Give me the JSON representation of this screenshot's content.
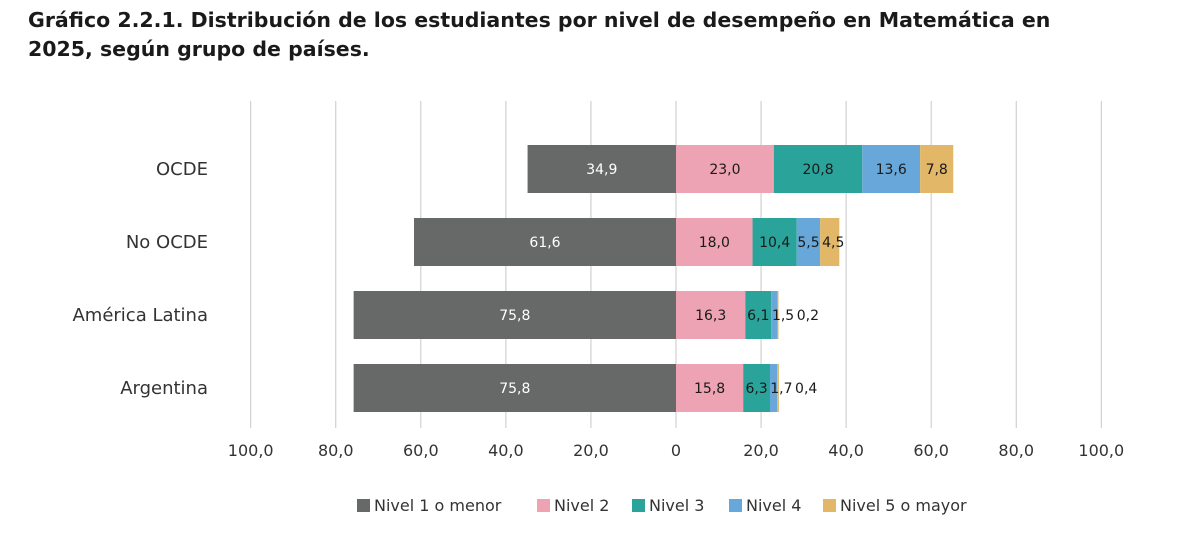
{
  "title_line1": "Gráfico 2.2.1. Distribución de los estudiantes por nivel de desempeño en Matemática en",
  "title_line2": "2025, según grupo de países.",
  "colors": {
    "nivel1": "#666968",
    "nivel2": "#eda3b3",
    "nivel3": "#2aa39a",
    "nivel4": "#68a7d9",
    "nivel5": "#e2b767",
    "grid": "#c8c8c8"
  },
  "chart_data": {
    "type": "bar",
    "orientation": "horizontal",
    "stacked": "diverging",
    "title": "Gráfico 2.2.1. Distribución de los estudiantes por nivel de desempeño en Matemática en 2025, según grupo de países.",
    "categories": [
      "OCDE",
      "No OCDE",
      "América Latina",
      "Argentina"
    ],
    "series": [
      {
        "name": "Nivel 1 o menor",
        "direction": "left",
        "values": [
          34.9,
          61.6,
          75.8,
          75.8
        ],
        "labels": [
          "34,9",
          "61,6",
          "75,8",
          "75,8"
        ]
      },
      {
        "name": "Nivel 2",
        "direction": "right",
        "values": [
          23.0,
          18.0,
          16.3,
          15.8
        ],
        "labels": [
          "23,0",
          "18,0",
          "16,3",
          "15,8"
        ]
      },
      {
        "name": "Nivel 3",
        "direction": "right",
        "values": [
          20.8,
          10.4,
          6.1,
          6.3
        ],
        "labels": [
          "20,8",
          "10,4",
          "6,1",
          "6,3"
        ]
      },
      {
        "name": "Nivel 4",
        "direction": "right",
        "values": [
          13.6,
          5.5,
          1.5,
          1.7
        ],
        "labels": [
          "13,6",
          "5,5",
          "1,5",
          "1,7"
        ]
      },
      {
        "name": "Nivel 5 o mayor",
        "direction": "right",
        "values": [
          7.8,
          4.5,
          0.2,
          0.4
        ],
        "labels": [
          "7,8",
          "4,5",
          "0,2",
          "0,4"
        ]
      }
    ],
    "xlim": [
      -100,
      100
    ],
    "x_ticks": [
      -100,
      -80,
      -60,
      -40,
      -20,
      0,
      20,
      40,
      60,
      80,
      100
    ],
    "x_tick_labels": [
      "100,0",
      "80,0",
      "60,0",
      "40,0",
      "20,0",
      "0",
      "20,0",
      "40,0",
      "60,0",
      "80,0",
      "100,0"
    ],
    "grid": true,
    "legend_position": "bottom-center"
  }
}
